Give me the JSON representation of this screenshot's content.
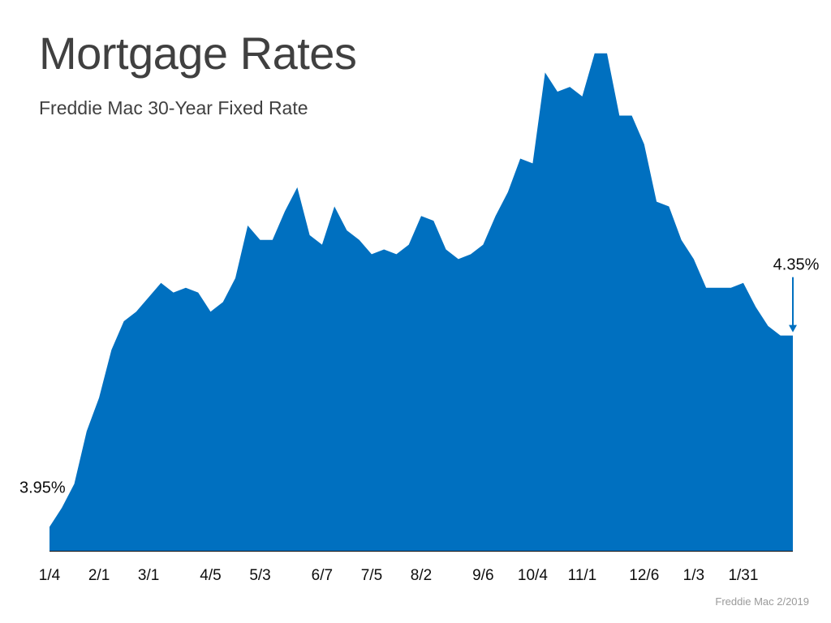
{
  "page": {
    "title": "Mortgage Rates",
    "subtitle": "Freddie Mac 30-Year Fixed Rate",
    "source": "Freddie Mac 2/2019"
  },
  "colors": {
    "area": "#0070c0",
    "text": "#404040",
    "axis": "#0d0d0d",
    "source": "#9a9a9a"
  },
  "chart_data": {
    "type": "area",
    "title": "Mortgage Rates",
    "subtitle": "Freddie Mac 30-Year Fixed Rate",
    "xlabel": "",
    "ylabel": "",
    "grid": false,
    "legend": "none",
    "x_ticks": [
      "1/4",
      "2/1",
      "3/1",
      "4/5",
      "5/3",
      "6/7",
      "7/5",
      "8/2",
      "9/6",
      "10/4",
      "11/1",
      "12/6",
      "1/3",
      "1/31"
    ],
    "ylim": [
      3.9,
      4.96
    ],
    "series": [
      {
        "values": [
          3.95,
          3.99,
          4.04,
          4.15,
          4.22,
          4.32,
          4.38,
          4.4,
          4.43,
          4.46,
          4.44,
          4.45,
          4.44,
          4.4,
          4.42,
          4.47,
          4.58,
          4.55,
          4.55,
          4.61,
          4.66,
          4.56,
          4.54,
          4.62,
          4.57,
          4.55,
          4.52,
          4.53,
          4.52,
          4.54,
          4.6,
          4.59,
          4.53,
          4.51,
          4.52,
          4.54,
          4.6,
          4.65,
          4.72,
          4.71,
          4.9,
          4.86,
          4.87,
          4.85,
          4.94,
          4.94,
          4.81,
          4.81,
          4.75,
          4.63,
          4.62,
          4.55,
          4.51,
          4.45,
          4.45,
          4.45,
          4.46,
          4.41,
          4.37,
          4.35,
          4.35
        ]
      }
    ],
    "annotations": [
      {
        "text": "3.95%",
        "target": "first"
      },
      {
        "text": "4.35%",
        "target": "last"
      }
    ]
  }
}
